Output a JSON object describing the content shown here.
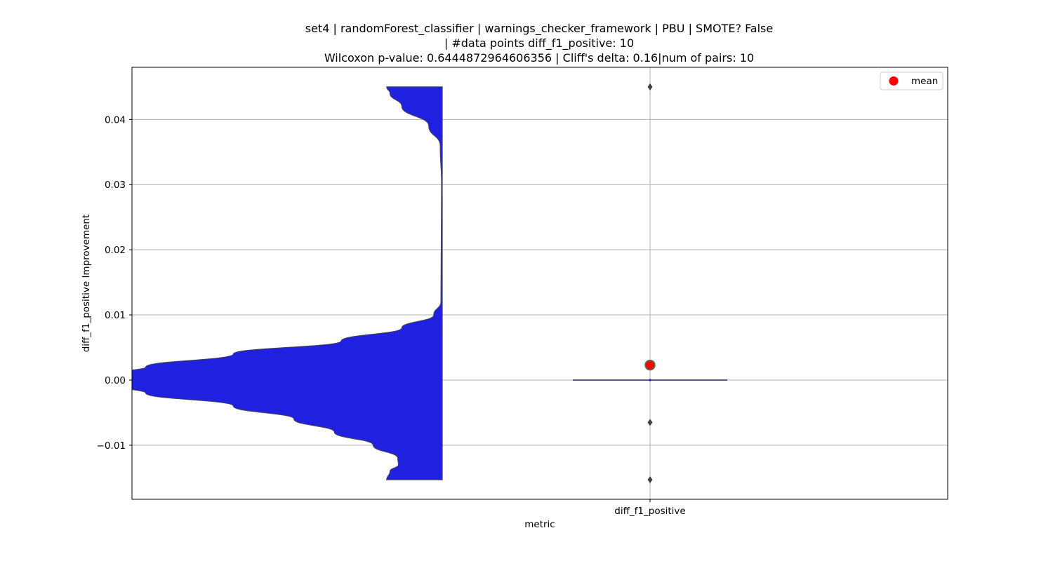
{
  "chart_data": {
    "type": "violin",
    "title_lines": [
      "set4 | randomForest_classifier | warnings_checker_framework | PBU | SMOTE? False",
      "| #data points diff_f1_positive: 10",
      "Wilcoxon p-value: 0.6444872964606356 | Cliff's delta: 0.16|num of pairs: 10"
    ],
    "xlabel": "metric",
    "ylabel": "diff_f1_positive Improvement",
    "categories": [
      "diff_f1_positive"
    ],
    "ylim": [
      -0.0183,
      0.048
    ],
    "yticks": [
      -0.01,
      0.0,
      0.01,
      0.02,
      0.03,
      0.04
    ],
    "ytick_labels": [
      "−0.01",
      "0.00",
      "0.01",
      "0.02",
      "0.03",
      "0.04"
    ],
    "grid": true,
    "legend": {
      "location": "upper right",
      "entries": [
        "mean"
      ]
    },
    "violin": {
      "color": "#2020e0",
      "data_range": [
        -0.0153,
        0.045
      ],
      "profile": [
        {
          "y": -0.0153,
          "w": 0.165
        },
        {
          "y": -0.014,
          "w": 0.155
        },
        {
          "y": -0.013,
          "w": 0.13
        },
        {
          "y": -0.012,
          "w": 0.132
        },
        {
          "y": -0.01,
          "w": 0.205
        },
        {
          "y": -0.008,
          "w": 0.32
        },
        {
          "y": -0.006,
          "w": 0.44
        },
        {
          "y": -0.004,
          "w": 0.62
        },
        {
          "y": -0.002,
          "w": 0.88
        },
        {
          "y": -0.001,
          "w": 0.95
        },
        {
          "y": 0.0,
          "w": 1.0
        },
        {
          "y": 0.001,
          "w": 0.97
        },
        {
          "y": 0.002,
          "w": 0.88
        },
        {
          "y": 0.004,
          "w": 0.62
        },
        {
          "y": 0.006,
          "w": 0.3
        },
        {
          "y": 0.008,
          "w": 0.12
        },
        {
          "y": 0.01,
          "w": 0.025
        },
        {
          "y": 0.012,
          "w": 0.004
        },
        {
          "y": 0.03,
          "w": 0.002
        },
        {
          "y": 0.036,
          "w": 0.006
        },
        {
          "y": 0.039,
          "w": 0.04
        },
        {
          "y": 0.042,
          "w": 0.12
        },
        {
          "y": 0.044,
          "w": 0.155
        },
        {
          "y": 0.045,
          "w": 0.165
        }
      ]
    },
    "box": {
      "q1": 0.0,
      "median": 0.0,
      "q3": 0.0,
      "whisker_low": 0.0,
      "whisker_high": 0.0,
      "color": "#5a5a7a",
      "outliers": [
        0.045,
        -0.0065,
        -0.0153
      ]
    },
    "mean": {
      "value": 0.0023,
      "color": "#ff0000",
      "edge_color": "#2e8b57"
    }
  }
}
